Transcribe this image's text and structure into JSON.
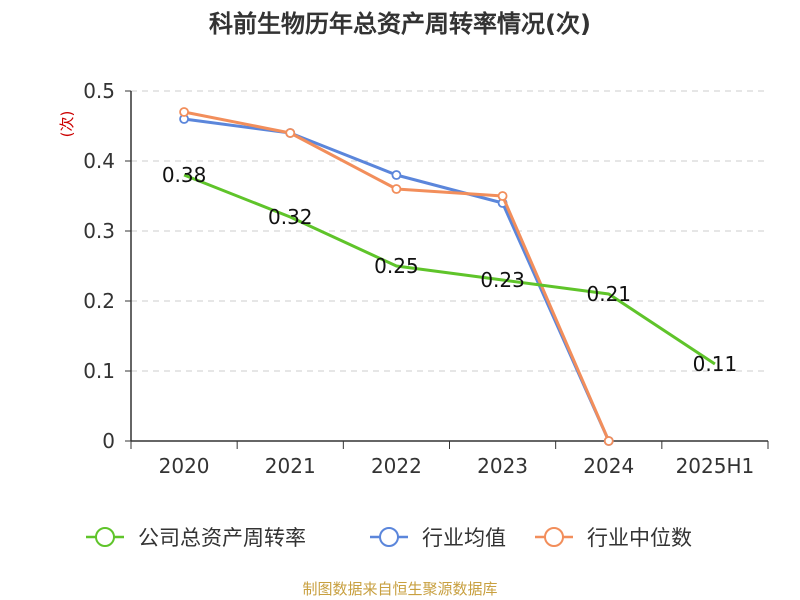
{
  "title": "科前生物历年总资产周转率情况(次)",
  "source": "制图数据来自恒生聚源数据库",
  "chart_data": {
    "type": "line",
    "categories": [
      "2020",
      "2021",
      "2022",
      "2023",
      "2024",
      "2025H1"
    ],
    "ylabel": "(次)",
    "ylim": [
      0,
      0.5
    ],
    "yticks": [
      "0",
      "0.1",
      "0.2",
      "0.3",
      "0.4",
      "0.5"
    ],
    "grid": true,
    "legend_position": "bottom",
    "series": [
      {
        "name": "公司总资产周转率",
        "color": "#5fc42a",
        "values": [
          0.38,
          0.32,
          0.25,
          0.23,
          0.21,
          0.11
        ],
        "data_labels": [
          "0.38",
          "0.32",
          "0.25",
          "0.23",
          "0.21",
          "0.11"
        ]
      },
      {
        "name": "行业均值",
        "color": "#5b86db",
        "values": [
          0.46,
          0.44,
          0.38,
          0.34,
          0,
          null
        ]
      },
      {
        "name": "行业中位数",
        "color": "#f28e5b",
        "values": [
          0.47,
          0.44,
          0.36,
          0.35,
          0,
          null
        ]
      }
    ]
  }
}
